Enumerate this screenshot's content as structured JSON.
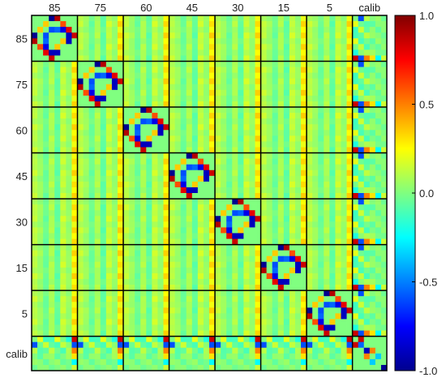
{
  "chart_data": {
    "type": "heatmap",
    "title": "",
    "xlabel": "",
    "ylabel": "",
    "block_labels": [
      "85",
      "75",
      "60",
      "45",
      "30",
      "15",
      "5",
      "calib"
    ],
    "block_size": 8,
    "calib_size": 6,
    "colorscale": "jet",
    "colorbar": {
      "range": [
        -1.0,
        1.0
      ],
      "ticks": [
        1.0,
        0.5,
        0.0,
        -0.5,
        -1.0
      ],
      "tick_labels": [
        "1.0",
        "0.5",
        "0.0",
        "-0.5",
        "-1.0"
      ]
    },
    "background_value": 0.0,
    "diagonal_block_pattern": [
      {
        "row": 0,
        "col": 3,
        "value": -1.0
      },
      {
        "row": 0,
        "col": 4,
        "value": 0.9
      },
      {
        "row": 1,
        "col": 2,
        "value": 0.35
      },
      {
        "row": 1,
        "col": 5,
        "value": -0.35
      },
      {
        "row": 2,
        "col": 3,
        "value": -0.6
      },
      {
        "row": 2,
        "col": 4,
        "value": -0.55
      },
      {
        "row": 2,
        "col": 6,
        "value": 0.8
      },
      {
        "row": 3,
        "col": 6,
        "value": -0.9
      },
      {
        "row": 3,
        "col": 7,
        "value": 0.85
      },
      {
        "row": 4,
        "col": 5,
        "value": 0.35
      },
      {
        "row": 4,
        "col": 6,
        "value": -0.9
      },
      {
        "row": 5,
        "col": 1,
        "value": 0.6
      },
      {
        "row": 5,
        "col": 2,
        "value": -0.8
      }
    ],
    "calib_block_pattern": [
      {
        "row": 0,
        "col": 1,
        "value": 0.85
      },
      {
        "row": 1,
        "col": 1,
        "value": -0.55
      },
      {
        "row": 2,
        "col": 2,
        "value": -0.9
      },
      {
        "row": 2,
        "col": 3,
        "value": 0.5
      },
      {
        "row": 4,
        "col": 3,
        "value": -0.35
      },
      {
        "row": 5,
        "col": 5,
        "value": -1.0
      }
    ],
    "cross_block_stripe_values": [
      0.25,
      0.12,
      -0.08,
      0.18,
      -0.12,
      0.28,
      0.1,
      0.6
    ],
    "calib_row_values": [
      0.85,
      -0.6,
      0.5,
      0.3,
      -0.25,
      0.15
    ]
  }
}
